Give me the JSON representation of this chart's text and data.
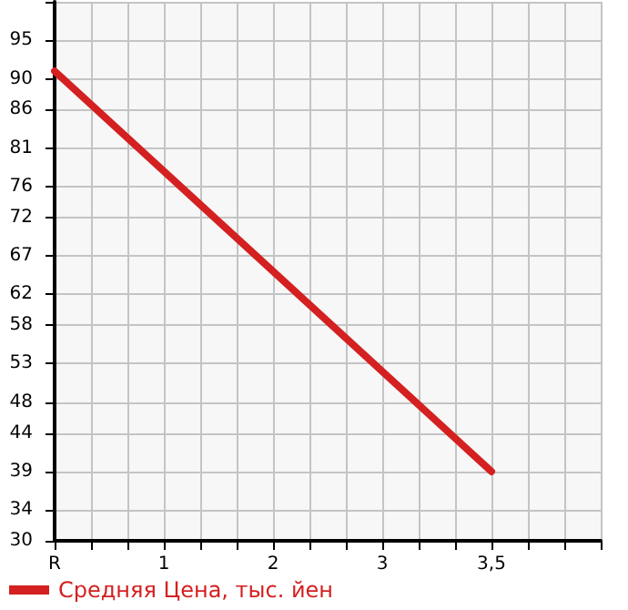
{
  "chart_data": {
    "type": "line",
    "categories": [
      "R",
      null,
      null,
      "1",
      null,
      null,
      "2",
      null,
      null,
      "3",
      null,
      null,
      "3,5",
      null,
      null,
      null
    ],
    "series": [
      {
        "name": "Средняя Цена, тыс. йен",
        "color": "#d42020",
        "x": [
          "R",
          "3,5"
        ],
        "values": [
          91,
          39
        ]
      }
    ],
    "ylim": [
      30,
      100
    ],
    "yticks": [
      30,
      34,
      39,
      44,
      48,
      53,
      58,
      62,
      67,
      72,
      76,
      81,
      86,
      90,
      95,
      {
        "value": 100,
        "label": null
      }
    ],
    "grid": true,
    "legend": "bottom left"
  }
}
